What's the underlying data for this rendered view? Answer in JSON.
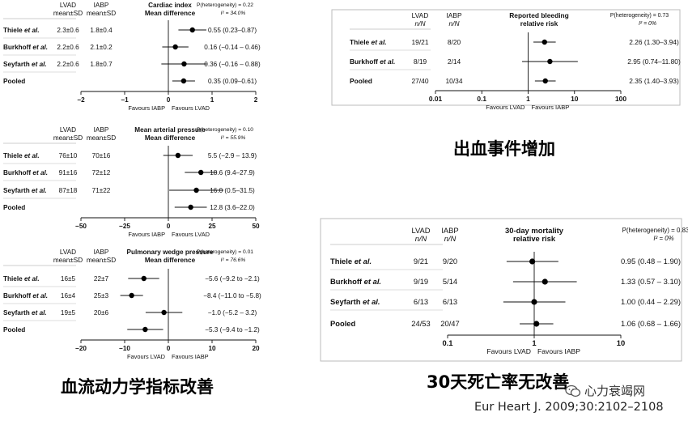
{
  "chart_data": [
    {
      "type": "forest",
      "title": "Cardiac index",
      "effect_label": "Mean difference",
      "group_a": {
        "name": "LVAD",
        "unit": "mean±SD"
      },
      "group_b": {
        "name": "IABP",
        "unit": "mean±SD"
      },
      "heterogeneity": {
        "p": "P(heterogeneity) = 0.22",
        "i2": "I² = 34.0%"
      },
      "scale": "linear",
      "xlim": [
        -2,
        2
      ],
      "ticks": [
        -2,
        -1,
        0,
        1,
        2
      ],
      "favours_left": "Favours IABP",
      "favours_right": "Favours LVAD",
      "rows": [
        {
          "study": "Thiele et al.",
          "a": "2.3±0.6",
          "b": "1.8±0.4",
          "est": 0.55,
          "lo": 0.23,
          "hi": 0.87,
          "label": "0.55 (0.23–0.87)"
        },
        {
          "study": "Burkhoff et al.",
          "a": "2.2±0.6",
          "b": "2.1±0.2",
          "est": 0.16,
          "lo": -0.14,
          "hi": 0.46,
          "label": "0.16 (−0.14 – 0.46)"
        },
        {
          "study": "Seyfarth et al.",
          "a": "2.2±0.6",
          "b": "1.8±0.7",
          "est": 0.36,
          "lo": -0.16,
          "hi": 0.88,
          "label": "0.36 (−0.16 – 0.88)"
        },
        {
          "study": "Pooled",
          "a": "",
          "b": "",
          "est": 0.35,
          "lo": 0.09,
          "hi": 0.61,
          "label": "0.35 (0.09–0.61)"
        }
      ]
    },
    {
      "type": "forest",
      "title": "Mean arterial pressure",
      "effect_label": "Mean difference",
      "group_a": {
        "name": "LVAD",
        "unit": "mean±SD"
      },
      "group_b": {
        "name": "IABP",
        "unit": "mean±SD"
      },
      "heterogeneity": {
        "p": "P(heterogeneity) = 0.10",
        "i2": "I² = 55.9%"
      },
      "scale": "linear",
      "xlim": [
        -50,
        50
      ],
      "ticks": [
        -50,
        -25,
        0,
        25,
        50
      ],
      "favours_left": "Favours IABP",
      "favours_right": "Favours LVAD",
      "rows": [
        {
          "study": "Thiele et al.",
          "a": "76±10",
          "b": "70±16",
          "est": 5.5,
          "lo": -2.9,
          "hi": 13.9,
          "label": "5.5 (−2.9 – 13.9)"
        },
        {
          "study": "Burkhoff et al.",
          "a": "91±16",
          "b": "72±12",
          "est": 18.6,
          "lo": 9.4,
          "hi": 27.9,
          "label": "18.6 (9.4–27.9)"
        },
        {
          "study": "Seyfarth et al.",
          "a": "87±18",
          "b": "71±22",
          "est": 16.0,
          "lo": 0.5,
          "hi": 31.5,
          "label": "16.0 (0.5–31.5)"
        },
        {
          "study": "Pooled",
          "a": "",
          "b": "",
          "est": 12.8,
          "lo": 3.6,
          "hi": 22.0,
          "label": "12.8 (3.6–22.0)"
        }
      ]
    },
    {
      "type": "forest",
      "title": "Pulmonary wedge pressure",
      "effect_label": "Mean difference",
      "group_a": {
        "name": "LVAD",
        "unit": "mean±SD"
      },
      "group_b": {
        "name": "IABP",
        "unit": "mean±SD"
      },
      "heterogeneity": {
        "p": "P(heterogeneity) = 0.01",
        "i2": "I² = 76.6%"
      },
      "scale": "linear",
      "xlim": [
        -20,
        20
      ],
      "ticks": [
        -20,
        -10,
        0,
        10,
        20
      ],
      "favours_left": "Favours LVAD",
      "favours_right": "Favours IABP",
      "rows": [
        {
          "study": "Thiele et al.",
          "a": "16±5",
          "b": "22±7",
          "est": -5.6,
          "lo": -9.2,
          "hi": -2.1,
          "label": "−5.6 (−9.2 to −2.1)"
        },
        {
          "study": "Burkhoff et al.",
          "a": "16±4",
          "b": "25±3",
          "est": -8.4,
          "lo": -11.0,
          "hi": -5.8,
          "label": "−8.4 (−11.0 to −5.8)"
        },
        {
          "study": "Seyfarth et al.",
          "a": "19±5",
          "b": "20±6",
          "est": -1.0,
          "lo": -5.2,
          "hi": 3.2,
          "label": "−1.0 (−5.2 – 3.2)"
        },
        {
          "study": "Pooled",
          "a": "",
          "b": "",
          "est": -5.3,
          "lo": -9.4,
          "hi": -1.2,
          "label": "−5.3 (−9.4 to −1.2)"
        }
      ]
    },
    {
      "type": "forest",
      "title": "Reported bleeding",
      "effect_label": "relative risk",
      "group_a": {
        "name": "LVAD",
        "unit": "n/N"
      },
      "group_b": {
        "name": "IABP",
        "unit": "n/N"
      },
      "heterogeneity": {
        "p": "P(heterogeneity) = 0.73",
        "i2": "I² = 0%"
      },
      "scale": "log",
      "xlim": [
        0.01,
        100
      ],
      "ticks": [
        0.01,
        0.1,
        1,
        10,
        100
      ],
      "tick_labels": [
        "0.01",
        "0.1",
        "1",
        "10",
        "100"
      ],
      "favours_left": "Favours LVAD",
      "favours_right": "Favours IABP",
      "rows": [
        {
          "study": "Thiele et al.",
          "a": "19/21",
          "b": "8/20",
          "est": 2.26,
          "lo": 1.3,
          "hi": 3.94,
          "label": "2.26 (1.30–3.94)"
        },
        {
          "study": "Burkhoff et al.",
          "a": "8/19",
          "b": "2/14",
          "est": 2.95,
          "lo": 0.74,
          "hi": 11.8,
          "label": "2.95 (0.74–11.80)"
        },
        {
          "study": "Pooled",
          "a": "27/40",
          "b": "10/34",
          "est": 2.35,
          "lo": 1.4,
          "hi": 3.93,
          "label": "2.35 (1.40–3.93)"
        }
      ]
    },
    {
      "type": "forest",
      "title": "30-day mortality",
      "effect_label": "relative risk",
      "group_a": {
        "name": "LVAD",
        "unit": "n/N"
      },
      "group_b": {
        "name": "IABP",
        "unit": "n/N"
      },
      "heterogeneity": {
        "p": "P(heterogeneity) = 0.83",
        "i2": "I² = 0%"
      },
      "scale": "log",
      "xlim": [
        0.1,
        10
      ],
      "ticks": [
        0.1,
        1,
        10
      ],
      "tick_labels": [
        "0.1",
        "1",
        "10"
      ],
      "favours_left": "Favours LVAD",
      "favours_right": "Favours IABP",
      "rows": [
        {
          "study": "Thiele et al.",
          "a": "9/21",
          "b": "9/20",
          "est": 0.95,
          "lo": 0.48,
          "hi": 1.9,
          "label": "0.95 (0.48 – 1.90)"
        },
        {
          "study": "Burkhoff et al.",
          "a": "9/19",
          "b": "5/14",
          "est": 1.33,
          "lo": 0.57,
          "hi": 3.1,
          "label": "1.33 (0.57 – 3.10)"
        },
        {
          "study": "Seyfarth et al.",
          "a": "6/13",
          "b": "6/13",
          "est": 1.0,
          "lo": 0.44,
          "hi": 2.29,
          "label": "1.00 (0.44 – 2.29)"
        },
        {
          "study": "Pooled",
          "a": "24/53",
          "b": "20/47",
          "est": 1.06,
          "lo": 0.68,
          "hi": 1.66,
          "label": "1.06 (0.68 – 1.66)"
        }
      ]
    }
  ],
  "captions": {
    "hemodynamics": "血流动力学指标改善",
    "bleeding": "出血事件增加",
    "mortality": "30天死亡率无改善"
  },
  "citation": "Eur Heart J. 2009;30:2102–2108",
  "watermark": {
    "text": "心力衰竭网",
    "icon": "wechat-icon"
  }
}
